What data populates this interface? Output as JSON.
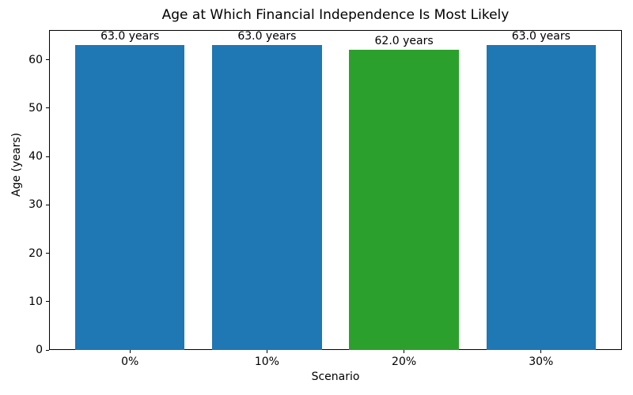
{
  "chart_data": {
    "type": "bar",
    "title": "Age at Which Financial Independence Is Most Likely",
    "xlabel": "Scenario",
    "ylabel": "Age (years)",
    "categories": [
      "0%",
      "10%",
      "20%",
      "30%"
    ],
    "values": [
      63.0,
      63.0,
      62.0,
      63.0
    ],
    "bar_labels": [
      "63.0 years",
      "63.0 years",
      "62.0 years",
      "63.0 years"
    ],
    "bar_colors": [
      "#1f77b4",
      "#1f77b4",
      "#2ca02c",
      "#1f77b4"
    ],
    "default_bar_color": "#1f77b4",
    "highlight_bar_color": "#2ca02c",
    "yticks": [
      0,
      10,
      20,
      30,
      40,
      50,
      60
    ],
    "ylim": [
      0,
      66.15
    ],
    "grid": false,
    "legend": null,
    "background_color": "#ffffff",
    "axis_color": "#000000"
  }
}
